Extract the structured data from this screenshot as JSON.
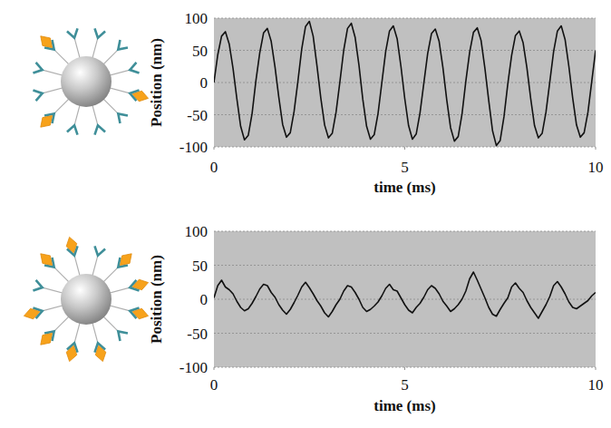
{
  "chart_data": [
    {
      "type": "line",
      "x_label": "time (ms)",
      "y_label": "Position (nm)",
      "xlim": [
        0,
        10
      ],
      "xticks": [
        0,
        5,
        10
      ],
      "ylim": [
        -100,
        100
      ],
      "yticks": [
        -100,
        -50,
        0,
        50,
        100
      ],
      "grid": true,
      "color": "#111111",
      "x": [
        0,
        0.1,
        0.2,
        0.3,
        0.4,
        0.5,
        0.6,
        0.7,
        0.8,
        0.9,
        1,
        1.1,
        1.2,
        1.3,
        1.4,
        1.5,
        1.6,
        1.7,
        1.8,
        1.9,
        2,
        2.1,
        2.2,
        2.3,
        2.4,
        2.5,
        2.6,
        2.7,
        2.8,
        2.9,
        3,
        3.1,
        3.2,
        3.3,
        3.4,
        3.5,
        3.6,
        3.7,
        3.8,
        3.9,
        4,
        4.1,
        4.2,
        4.3,
        4.4,
        4.5,
        4.6,
        4.7,
        4.8,
        4.9,
        5,
        5.1,
        5.2,
        5.3,
        5.4,
        5.5,
        5.6,
        5.7,
        5.8,
        5.9,
        6,
        6.1,
        6.2,
        6.3,
        6.4,
        6.5,
        6.6,
        6.7,
        6.8,
        6.9,
        7,
        7.1,
        7.2,
        7.3,
        7.4,
        7.5,
        7.6,
        7.7,
        7.8,
        7.9,
        8,
        8.1,
        8.2,
        8.3,
        8.4,
        8.5,
        8.6,
        8.7,
        8.8,
        8.9,
        9,
        9.1,
        9.2,
        9.3,
        9.4,
        9.5,
        9.6,
        9.7,
        9.8,
        9.9,
        10
      ],
      "values": [
        0,
        43,
        72,
        79,
        60,
        22,
        -25,
        -68,
        -89,
        -82,
        -48,
        3,
        46,
        77,
        84,
        64,
        24,
        -23,
        -65,
        -85,
        -78,
        -45,
        2,
        52,
        87,
        95,
        72,
        26,
        -24,
        -66,
        -86,
        -79,
        -46,
        1,
        50,
        84,
        92,
        70,
        27,
        -26,
        -68,
        -88,
        -81,
        -48,
        0,
        48,
        80,
        88,
        68,
        25,
        -25,
        -67,
        -88,
        -80,
        -47,
        -1,
        45,
        76,
        83,
        64,
        23,
        -27,
        -70,
        -91,
        -84,
        -49,
        2,
        47,
        78,
        85,
        65,
        22,
        -28,
        -75,
        -98,
        -90,
        -53,
        -2,
        42,
        73,
        80,
        62,
        23,
        -25,
        -67,
        -86,
        -79,
        -46,
        1,
        48,
        80,
        88,
        67,
        25,
        -24,
        -66,
        -85,
        -78,
        -46,
        2,
        50
      ]
    },
    {
      "type": "line",
      "x_label": "time (ms)",
      "y_label": "Position (nm)",
      "xlim": [
        0,
        10
      ],
      "xticks": [
        0,
        5,
        10
      ],
      "ylim": [
        -100,
        100
      ],
      "yticks": [
        -100,
        -50,
        0,
        50,
        100
      ],
      "grid": true,
      "color": "#111111",
      "x": [
        0,
        0.1,
        0.2,
        0.3,
        0.4,
        0.5,
        0.6,
        0.7,
        0.8,
        0.9,
        1,
        1.1,
        1.2,
        1.3,
        1.4,
        1.5,
        1.6,
        1.7,
        1.8,
        1.9,
        2,
        2.1,
        2.2,
        2.3,
        2.4,
        2.5,
        2.6,
        2.7,
        2.8,
        2.9,
        3,
        3.1,
        3.2,
        3.3,
        3.4,
        3.5,
        3.6,
        3.7,
        3.8,
        3.9,
        4,
        4.1,
        4.2,
        4.3,
        4.4,
        4.5,
        4.6,
        4.7,
        4.8,
        4.9,
        5,
        5.1,
        5.2,
        5.3,
        5.4,
        5.5,
        5.6,
        5.7,
        5.8,
        5.9,
        6,
        6.1,
        6.2,
        6.3,
        6.4,
        6.5,
        6.6,
        6.7,
        6.8,
        6.9,
        7,
        7.1,
        7.2,
        7.3,
        7.4,
        7.5,
        7.6,
        7.7,
        7.8,
        7.9,
        8,
        8.1,
        8.2,
        8.3,
        8.4,
        8.5,
        8.6,
        8.7,
        8.8,
        8.9,
        9,
        9.1,
        9.2,
        9.3,
        9.4,
        9.5,
        9.6,
        9.7,
        9.8,
        9.9,
        10
      ],
      "values": [
        2,
        20,
        28,
        18,
        14,
        8,
        -3,
        -12,
        -17,
        -14,
        -6,
        4,
        15,
        22,
        20,
        10,
        3,
        -8,
        -16,
        -22,
        -15,
        -5,
        6,
        18,
        25,
        17,
        8,
        -2,
        -10,
        -20,
        -26,
        -18,
        -8,
        0,
        12,
        20,
        18,
        10,
        0,
        -12,
        -18,
        -15,
        -10,
        -4,
        5,
        16,
        22,
        14,
        12,
        2,
        -8,
        -16,
        -20,
        -12,
        -6,
        3,
        14,
        20,
        16,
        8,
        -3,
        -10,
        -18,
        -14,
        -8,
        0,
        12,
        30,
        40,
        28,
        15,
        2,
        -12,
        -22,
        -25,
        -15,
        -6,
        2,
        18,
        24,
        16,
        10,
        -2,
        -12,
        -20,
        -28,
        -18,
        -8,
        4,
        20,
        26,
        18,
        8,
        -4,
        -12,
        -14,
        -10,
        -6,
        -2,
        5,
        10
      ]
    }
  ]
}
